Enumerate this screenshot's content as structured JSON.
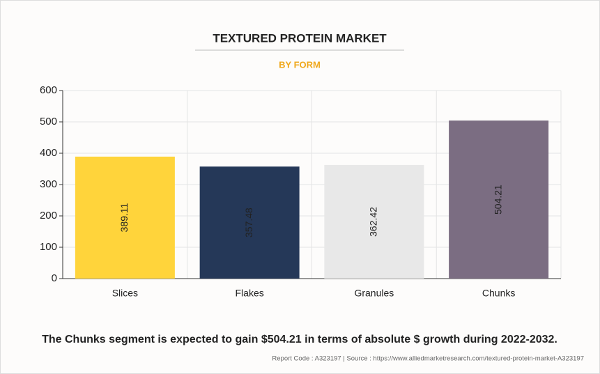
{
  "chart_data": {
    "type": "bar",
    "title": "TEXTURED PROTEIN MARKET",
    "subtitle": "BY FORM",
    "categories": [
      "Slices",
      "Flakes",
      "Granules",
      "Chunks"
    ],
    "values": [
      389.11,
      357.48,
      362.42,
      504.21
    ],
    "colors": [
      "#ffd43b",
      "#253858",
      "#e8e8e8",
      "#7b6d82"
    ],
    "ylim": [
      0,
      600
    ],
    "yticks": [
      0,
      100,
      200,
      300,
      400,
      500,
      600
    ],
    "grid": true,
    "caption": "The Chunks segment is expected to gain $504.21 in terms of absolute $ growth during 2022-2032.",
    "footnote": "Report Code : A323197  |  Source : https://www.alliedmarketresearch.com/textured-protein-market-A323197"
  }
}
